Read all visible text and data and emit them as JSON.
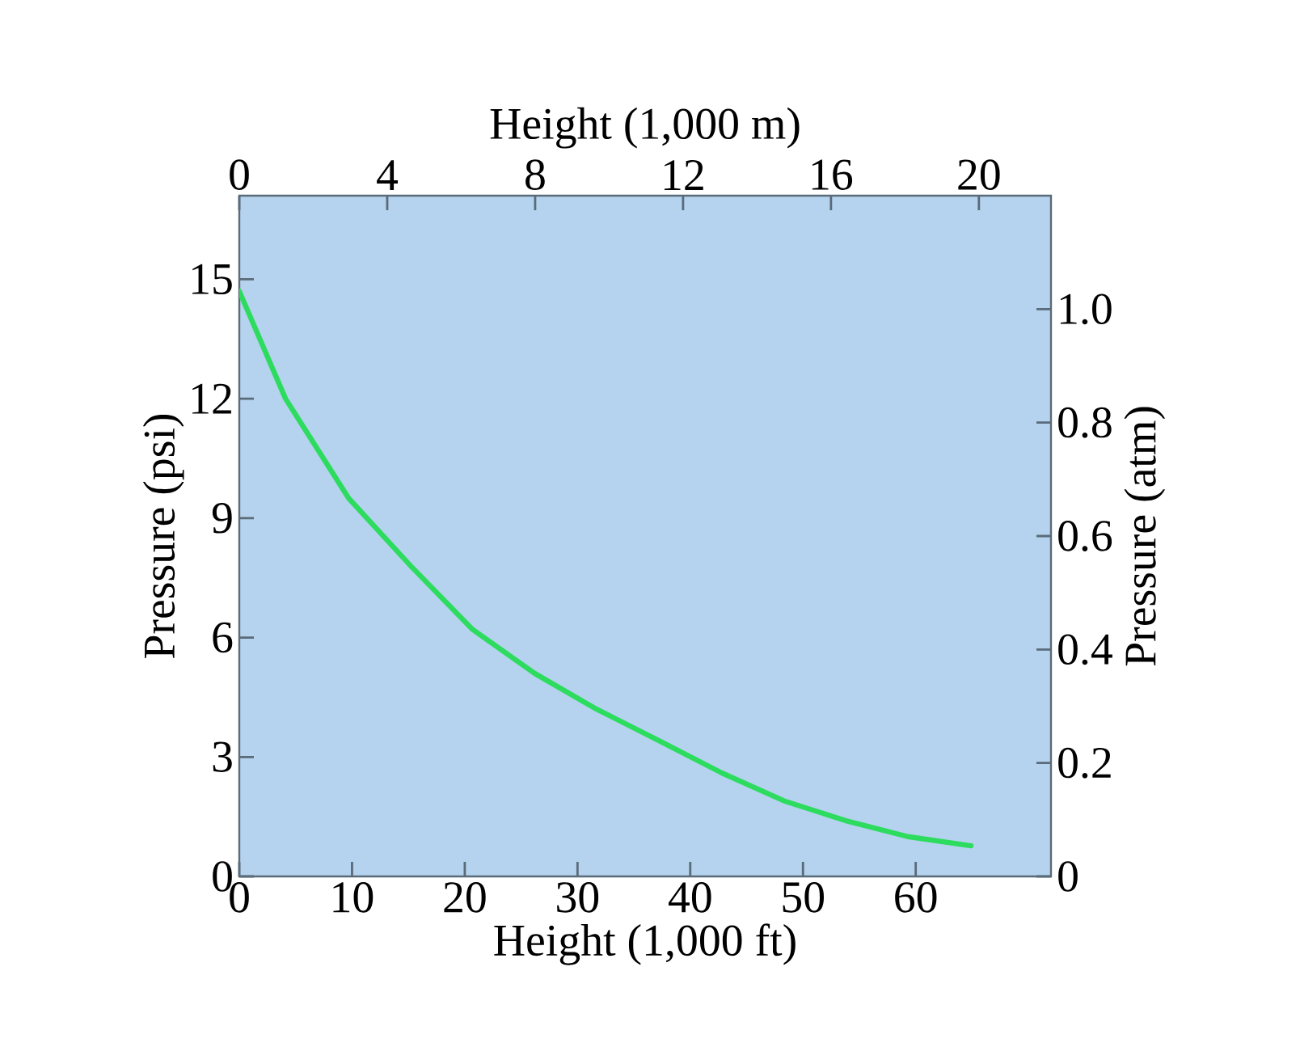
{
  "chart_data": {
    "type": "line",
    "xlabel": "Height (1,000 ft)",
    "ylabel": "Pressure (psi)",
    "x2label": "Height (1,000 m)",
    "y2label": "Pressure (atm)",
    "x": [
      0,
      4.1,
      9.7,
      15.2,
      20.7,
      26.2,
      31.7,
      37.3,
      42.8,
      48.3,
      53.8,
      59.3,
      64.9
    ],
    "series": [
      {
        "color": "#2ddc5e",
        "values": [
          14.7,
          12.0,
          9.5,
          7.8,
          6.2,
          5.1,
          4.2,
          3.4,
          2.6,
          1.9,
          1.4,
          1.0,
          0.77
        ]
      }
    ],
    "marker": "none",
    "xlim": [
      0,
      72
    ],
    "xticks": [
      0,
      10,
      20,
      30,
      40,
      50,
      60
    ],
    "ylim": [
      0,
      17.1
    ],
    "yticks": [
      0,
      3,
      6,
      9,
      12,
      15
    ],
    "x2lim": [
      0,
      21.95
    ],
    "x2ticks": [
      0,
      4,
      8,
      12,
      16,
      20
    ],
    "y2lim": [
      0,
      1.2
    ],
    "y2ticks": [
      0,
      0.2,
      0.4,
      0.6,
      0.8,
      {
        "value": 1,
        "label": "1.0"
      }
    ]
  }
}
